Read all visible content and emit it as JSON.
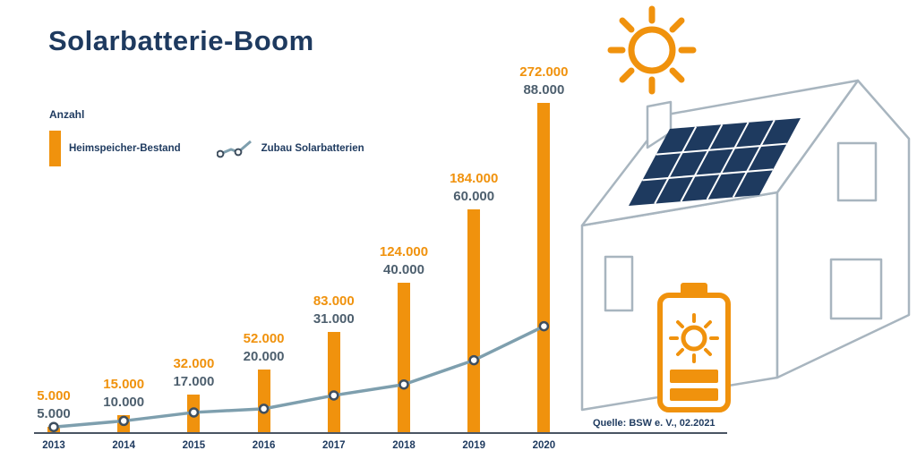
{
  "title": "Solarbatterie-Boom",
  "legend": {
    "axis_label": "Anzahl",
    "bar_series_label": "Heimspeicher-Bestand",
    "line_series_label": "Zubau Solarbatterien"
  },
  "source": "Quelle: BSW e. V., 02.2021",
  "colors": {
    "orange": "#f0920d",
    "navy": "#1e3a5f",
    "line": "#7e9fae",
    "secondary_label": "#4d5f6e",
    "house_stroke": "#a8b5bf",
    "panel_fill": "#1e3a5f"
  },
  "icons": {
    "sun": "sun-icon",
    "house": "house-with-solar-panel",
    "battery": "solar-battery-icon",
    "bar_swatch": "bar-swatch-icon",
    "line_swatch": "line-swatch-icon"
  },
  "chart_data": {
    "type": "bar+line",
    "categories": [
      "2013",
      "2014",
      "2015",
      "2016",
      "2017",
      "2018",
      "2019",
      "2020"
    ],
    "series": [
      {
        "name": "Heimspeicher-Bestand",
        "type": "bar",
        "color": "#f0920d",
        "values": [
          5000,
          15000,
          32000,
          52000,
          83000,
          124000,
          184000,
          272000
        ],
        "labels": [
          "5.000",
          "15.000",
          "32.000",
          "52.000",
          "83.000",
          "124.000",
          "184.000",
          "272.000"
        ]
      },
      {
        "name": "Zubau Solarbatterien",
        "type": "line",
        "color": "#7e9fae",
        "values": [
          5000,
          10000,
          17000,
          20000,
          31000,
          40000,
          60000,
          88000
        ],
        "labels": [
          "5.000",
          "10.000",
          "17.000",
          "20.000",
          "31.000",
          "40.000",
          "60.000",
          "88.000"
        ]
      }
    ],
    "ylabel": "Anzahl",
    "ylim": [
      0,
      280000
    ],
    "grid": false,
    "legend_position": "top-left"
  }
}
